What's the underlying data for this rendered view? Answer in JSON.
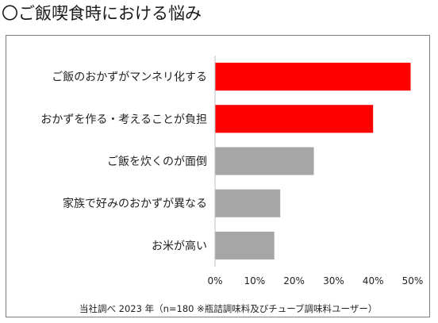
{
  "title": "〇ご飯喫食時における悩み",
  "colors": {
    "highlight": "#ff0000",
    "normal": "#a6a6a6",
    "axis": "#bfbfbf"
  },
  "chart_data": {
    "type": "bar",
    "orientation": "horizontal",
    "categories": [
      "ご飯のおかずがマンネリ化する",
      "おかずを作る・考えることが負担",
      "ご飯を炊くのが面倒",
      "家族で好みのおかずが異なる",
      "お米が高い"
    ],
    "values": [
      49.5,
      40,
      25,
      16.5,
      15
    ],
    "highlighted": [
      true,
      true,
      false,
      false,
      false
    ],
    "unit": "%",
    "xlim": [
      0,
      50
    ],
    "xticks": [
      0,
      10,
      20,
      30,
      40,
      50
    ],
    "xtick_labels": [
      "0%",
      "10%",
      "20%",
      "30%",
      "40%",
      "50%"
    ],
    "grid": false,
    "legend": "none"
  },
  "footnote": "当社調べ 2023 年（n=180 ※瓶詰調味料及びチューブ調味料ユーザー）"
}
